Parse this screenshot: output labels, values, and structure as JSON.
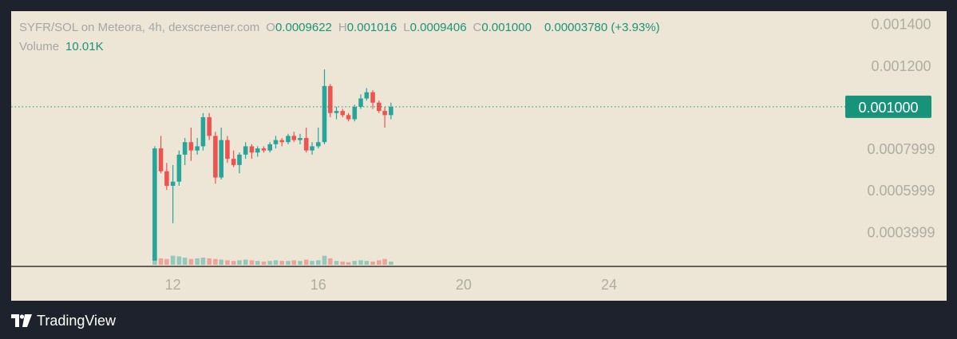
{
  "legend": {
    "pair": "SYFR/SOL on Meteora",
    "interval": "4h",
    "source": "dexscreener.com",
    "o_label": "O",
    "o_value": "0.0009622",
    "h_label": "H",
    "h_value": "0.001016",
    "l_label": "L",
    "l_value": "0.0009406",
    "c_label": "C",
    "c_value": "0.001000",
    "change": "0.00003780 (+3.93%)",
    "volume_label": "Volume",
    "volume_value": "10.01K"
  },
  "branding": {
    "name": "TradingView"
  },
  "colors": {
    "up": "#26a69a",
    "down": "#ef5350",
    "background": "#ede5d6",
    "frame": "#1e222d",
    "label_bg": "#17937a"
  },
  "chart_data": {
    "type": "candlestick",
    "title": "",
    "ylim": [
      0.00024,
      0.00146
    ],
    "y_ticks": [
      "0.001400",
      "0.001200",
      "0.0007999",
      "0.0005999",
      "0.0003999"
    ],
    "y_tick_values": [
      0.0014,
      0.0012,
      0.0008,
      0.0006,
      0.0004
    ],
    "x_ticks": [
      "12",
      "16",
      "20",
      "24"
    ],
    "x_tick_values": [
      12,
      16,
      20,
      24
    ],
    "xlim": [
      7.55,
      30.5
    ],
    "last_price": "0.001000",
    "last_price_value": 0.001,
    "candles": [
      {
        "x": 11.5,
        "o": 0.00026,
        "h": 0.00081,
        "l": 0.00026,
        "c": 0.0008,
        "v": 16
      },
      {
        "x": 11.67,
        "o": 0.0008,
        "h": 0.00086,
        "l": 0.00068,
        "c": 0.00069,
        "v": 10
      },
      {
        "x": 11.83,
        "o": 0.00069,
        "h": 0.00073,
        "l": 0.0006,
        "c": 0.00062,
        "v": 9
      },
      {
        "x": 12.0,
        "o": 0.00062,
        "h": 0.00072,
        "l": 0.00044,
        "c": 0.00064,
        "v": 14
      },
      {
        "x": 12.17,
        "o": 0.00064,
        "h": 0.00079,
        "l": 0.00062,
        "c": 0.00077,
        "v": 13
      },
      {
        "x": 12.33,
        "o": 0.00077,
        "h": 0.00085,
        "l": 0.00072,
        "c": 0.00083,
        "v": 11
      },
      {
        "x": 12.5,
        "o": 0.00083,
        "h": 0.0009,
        "l": 0.00074,
        "c": 0.00079,
        "v": 9
      },
      {
        "x": 12.67,
        "o": 0.00079,
        "h": 0.00085,
        "l": 0.00077,
        "c": 0.00081,
        "v": 10
      },
      {
        "x": 12.83,
        "o": 0.00081,
        "h": 0.00097,
        "l": 0.00079,
        "c": 0.00095,
        "v": 11
      },
      {
        "x": 13.0,
        "o": 0.00095,
        "h": 0.00097,
        "l": 0.00084,
        "c": 0.00086,
        "v": 10
      },
      {
        "x": 13.17,
        "o": 0.00086,
        "h": 0.00088,
        "l": 0.00063,
        "c": 0.00066,
        "v": 9
      },
      {
        "x": 13.33,
        "o": 0.00066,
        "h": 0.0009,
        "l": 0.00065,
        "c": 0.00084,
        "v": 8
      },
      {
        "x": 13.5,
        "o": 0.00084,
        "h": 0.00086,
        "l": 0.00073,
        "c": 0.00075,
        "v": 7
      },
      {
        "x": 13.67,
        "o": 0.00075,
        "h": 0.00079,
        "l": 0.00071,
        "c": 0.00072,
        "v": 6
      },
      {
        "x": 13.83,
        "o": 0.00072,
        "h": 0.00078,
        "l": 0.00068,
        "c": 0.00077,
        "v": 7
      },
      {
        "x": 14.0,
        "o": 0.00077,
        "h": 0.00083,
        "l": 0.00075,
        "c": 0.00081,
        "v": 8
      },
      {
        "x": 14.17,
        "o": 0.00081,
        "h": 0.00082,
        "l": 0.00075,
        "c": 0.00078,
        "v": 7
      },
      {
        "x": 14.33,
        "o": 0.00078,
        "h": 0.00081,
        "l": 0.00076,
        "c": 0.0008,
        "v": 6
      },
      {
        "x": 14.5,
        "o": 0.0008,
        "h": 0.00081,
        "l": 0.00078,
        "c": 0.00079,
        "v": 5
      },
      {
        "x": 14.67,
        "o": 0.00079,
        "h": 0.00083,
        "l": 0.00078,
        "c": 0.00082,
        "v": 6
      },
      {
        "x": 14.83,
        "o": 0.00082,
        "h": 0.00086,
        "l": 0.0008,
        "c": 0.00084,
        "v": 7
      },
      {
        "x": 15.0,
        "o": 0.00084,
        "h": 0.00085,
        "l": 0.00081,
        "c": 0.00083,
        "v": 6
      },
      {
        "x": 15.17,
        "o": 0.00083,
        "h": 0.00087,
        "l": 0.00082,
        "c": 0.00086,
        "v": 6
      },
      {
        "x": 15.33,
        "o": 0.00086,
        "h": 0.00088,
        "l": 0.00083,
        "c": 0.00084,
        "v": 7
      },
      {
        "x": 15.5,
        "o": 0.00084,
        "h": 0.00087,
        "l": 0.00082,
        "c": 0.00085,
        "v": 6
      },
      {
        "x": 15.67,
        "o": 0.00085,
        "h": 0.0009,
        "l": 0.00078,
        "c": 0.00079,
        "v": 8
      },
      {
        "x": 15.83,
        "o": 0.00079,
        "h": 0.00083,
        "l": 0.00077,
        "c": 0.00081,
        "v": 6
      },
      {
        "x": 16.0,
        "o": 0.00081,
        "h": 0.0009,
        "l": 0.0008,
        "c": 0.00083,
        "v": 7
      },
      {
        "x": 16.17,
        "o": 0.00083,
        "h": 0.00118,
        "l": 0.00082,
        "c": 0.0011,
        "v": 14
      },
      {
        "x": 16.33,
        "o": 0.0011,
        "h": 0.00111,
        "l": 0.00095,
        "c": 0.00097,
        "v": 10
      },
      {
        "x": 16.5,
        "o": 0.00097,
        "h": 0.001,
        "l": 0.00094,
        "c": 0.00098,
        "v": 6
      },
      {
        "x": 16.67,
        "o": 0.00098,
        "h": 0.00099,
        "l": 0.00095,
        "c": 0.00096,
        "v": 5
      },
      {
        "x": 16.83,
        "o": 0.00096,
        "h": 0.00097,
        "l": 0.00093,
        "c": 0.00094,
        "v": 4
      },
      {
        "x": 17.0,
        "o": 0.00094,
        "h": 0.00101,
        "l": 0.00093,
        "c": 0.001,
        "v": 6
      },
      {
        "x": 17.17,
        "o": 0.001,
        "h": 0.00106,
        "l": 0.00099,
        "c": 0.00104,
        "v": 7
      },
      {
        "x": 17.33,
        "o": 0.00104,
        "h": 0.00109,
        "l": 0.00103,
        "c": 0.00107,
        "v": 6
      },
      {
        "x": 17.5,
        "o": 0.00107,
        "h": 0.00108,
        "l": 0.00099,
        "c": 0.00102,
        "v": 5
      },
      {
        "x": 17.67,
        "o": 0.00102,
        "h": 0.00103,
        "l": 0.00097,
        "c": 0.00098,
        "v": 7
      },
      {
        "x": 17.83,
        "o": 0.00098,
        "h": 0.001,
        "l": 0.0009,
        "c": 0.00096,
        "v": 9
      },
      {
        "x": 18.0,
        "o": 0.00096,
        "h": 0.00102,
        "l": 0.00094,
        "c": 0.001,
        "v": 5
      }
    ]
  }
}
